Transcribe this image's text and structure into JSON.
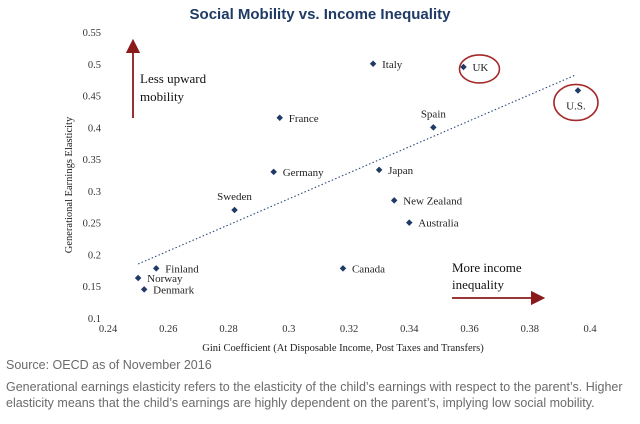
{
  "colors": {
    "title": "#1f3a64",
    "point": "#1f3a64",
    "arrow": "#8b1a1a",
    "circle": "#a52a2a",
    "trend": "#2a4a7a",
    "note": "#6b6b6b"
  },
  "chart_data": {
    "type": "scatter",
    "title": "Social Mobility vs. Income Inequality",
    "xlabel": "Gini Coefficient (At Disposable Income, Post Taxes and Transfers)",
    "ylabel": "Generational Earnings Elasticity",
    "xlim": [
      0.24,
      0.4
    ],
    "ylim": [
      0.1,
      0.55
    ],
    "xticks": [
      "0.24",
      "0.26",
      "0.28",
      "0.3",
      "0.32",
      "0.34",
      "0.36",
      "0.38",
      "0.4"
    ],
    "yticks": [
      "0.1",
      "0.15",
      "0.2",
      "0.25",
      "0.3",
      "0.35",
      "0.4",
      "0.45",
      "0.5",
      "0.55"
    ],
    "grid": false,
    "trendline": {
      "style": "dotted",
      "from": [
        0.25,
        0.185
      ],
      "to": [
        0.395,
        0.482
      ]
    },
    "points": [
      {
        "label": "Italy",
        "x": 0.328,
        "y": 0.5,
        "side": "right"
      },
      {
        "label": "UK",
        "x": 0.358,
        "y": 0.495,
        "side": "right",
        "circled": true
      },
      {
        "label": "U.S.",
        "x": 0.396,
        "y": 0.458,
        "side": "below",
        "circled": true
      },
      {
        "label": "France",
        "x": 0.297,
        "y": 0.415,
        "side": "right"
      },
      {
        "label": "Spain",
        "x": 0.348,
        "y": 0.4,
        "side": "above"
      },
      {
        "label": "Germany",
        "x": 0.295,
        "y": 0.33,
        "side": "right"
      },
      {
        "label": "Japan",
        "x": 0.33,
        "y": 0.333,
        "side": "right"
      },
      {
        "label": "Sweden",
        "x": 0.282,
        "y": 0.27,
        "side": "above"
      },
      {
        "label": "New Zealand",
        "x": 0.335,
        "y": 0.285,
        "side": "right"
      },
      {
        "label": "Australia",
        "x": 0.34,
        "y": 0.25,
        "side": "right"
      },
      {
        "label": "Finland",
        "x": 0.256,
        "y": 0.178,
        "side": "right"
      },
      {
        "label": "Norway",
        "x": 0.25,
        "y": 0.163,
        "side": "right"
      },
      {
        "label": "Denmark",
        "x": 0.252,
        "y": 0.145,
        "side": "right"
      },
      {
        "label": "Canada",
        "x": 0.318,
        "y": 0.178,
        "side": "right"
      }
    ],
    "annotations": [
      {
        "lines": [
          "Less upward",
          "mobility"
        ],
        "arrow": "up"
      },
      {
        "lines": [
          "More income",
          "inequality"
        ],
        "arrow": "right"
      }
    ]
  },
  "source": "Source: OECD as of November 2016",
  "note": "Generational earnings elasticity refers to the elasticity of the child’s earnings with respect to the parent’s. Higher elasticity means that the child’s earnings are highly dependent on the parent’s, implying low social mobility."
}
